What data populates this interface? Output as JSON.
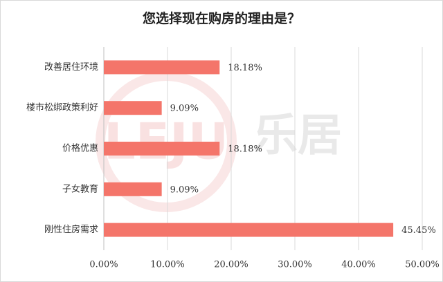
{
  "chart_data": {
    "type": "bar",
    "orientation": "horizontal",
    "title": "您选择现在购房的理由是？",
    "categories": [
      "改善居住环境",
      "楼市松绑政策利好",
      "价格优惠",
      "子女教育",
      "刚性住房需求"
    ],
    "values": [
      18.18,
      9.09,
      18.18,
      9.09,
      45.45
    ],
    "value_labels": [
      "18.18%",
      "9.09%",
      "18.18%",
      "9.09%",
      "45.45%"
    ],
    "color": "#f4756a",
    "xlim": [
      0,
      50
    ],
    "xticks": [
      {
        "value": 0,
        "label": "0.00%"
      },
      {
        "value": 10,
        "label": "10.00%"
      },
      {
        "value": 20,
        "label": "20.00%"
      },
      {
        "value": 30,
        "label": "30.00%"
      },
      {
        "value": 40,
        "label": "40.00%"
      },
      {
        "value": 50,
        "label": "50.00%"
      }
    ],
    "grid": true
  },
  "watermark": {
    "logo": "LEJU",
    "text": "乐居"
  }
}
